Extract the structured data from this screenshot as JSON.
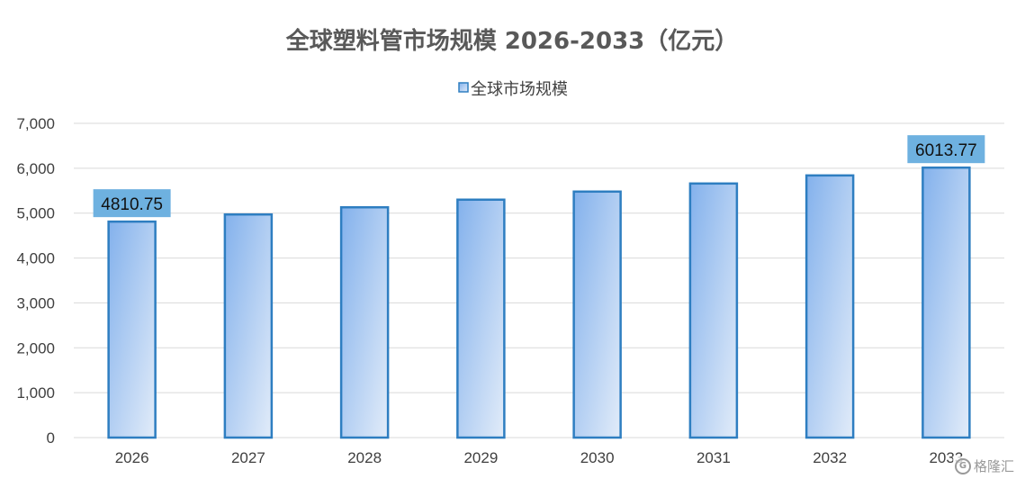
{
  "chart_data": {
    "type": "bar",
    "title": "全球塑料管市场规模 2026-2033（亿元）",
    "categories": [
      "2026",
      "2027",
      "2028",
      "2029",
      "2030",
      "2031",
      "2032",
      "2033"
    ],
    "series": [
      {
        "name": "全球市场规模",
        "values": [
          4810.75,
          4970,
          5130,
          5300,
          5480,
          5660,
          5840,
          6013.77
        ]
      }
    ],
    "data_labels": [
      {
        "category": "2026",
        "text": "4810.75"
      },
      {
        "category": "2033",
        "text": "6013.77"
      }
    ],
    "ylim": [
      0,
      7000
    ],
    "yticks": [
      0,
      1000,
      2000,
      3000,
      4000,
      5000,
      6000,
      7000
    ],
    "ytick_labels": [
      "0",
      "1,000",
      "2,000",
      "3,000",
      "4,000",
      "5,000",
      "6,000",
      "7,000"
    ],
    "xlabel": "",
    "ylabel": "",
    "grid": true,
    "legend_position": "top-center",
    "colors": {
      "bar_stroke": "#2e7ec1",
      "bar_fill_start": "#83b1ec",
      "bar_fill_end": "#e2ecf9",
      "label_box": "#6eb1e0",
      "grid": "#d9d9d9",
      "text": "#404040",
      "title": "#595959"
    }
  },
  "watermark": {
    "text": "格隆汇",
    "icon": "glh-logo-icon"
  }
}
